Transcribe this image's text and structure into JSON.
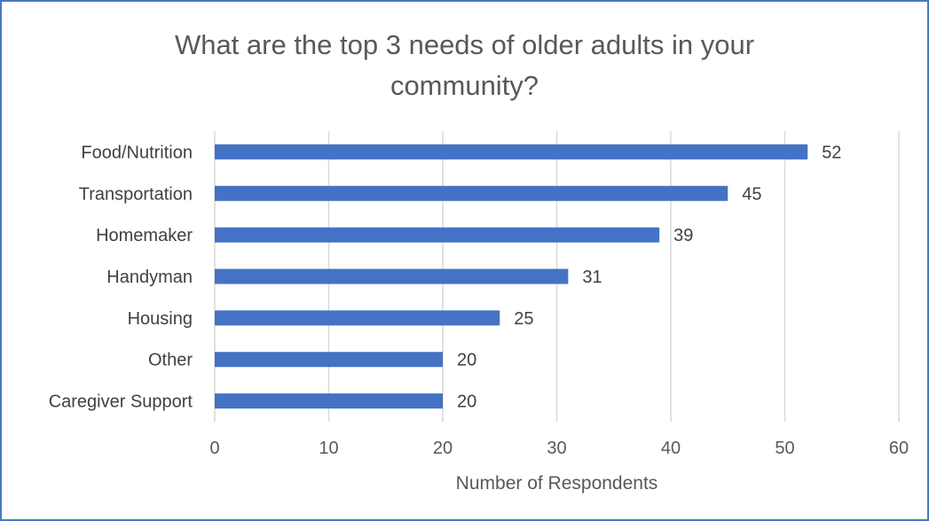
{
  "chart_data": {
    "type": "bar",
    "orientation": "horizontal",
    "title_lines": [
      "What are the top 3 needs of older adults in your",
      "community?"
    ],
    "categories": [
      "Food/Nutrition",
      "Transportation",
      "Homemaker",
      "Handyman",
      "Housing",
      "Other",
      "Caregiver Support"
    ],
    "values": [
      52,
      45,
      39,
      31,
      25,
      20,
      20
    ],
    "xlabel": "Number of Respondents",
    "ylabel": "",
    "xlim": [
      0,
      60
    ],
    "xticks": [
      0,
      10,
      20,
      30,
      40,
      50,
      60
    ],
    "grid": true,
    "bar_color": "#4472c4",
    "grid_color": "#d9d9d9"
  }
}
